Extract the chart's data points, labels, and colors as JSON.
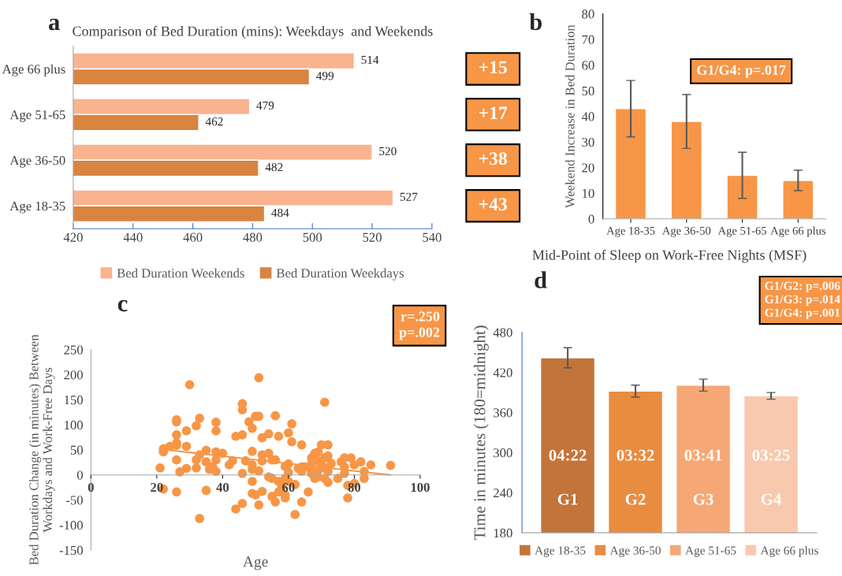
{
  "chart_data": [
    {
      "type": "bar",
      "orientation": "horizontal",
      "title": "Comparison of Bed Duration (mins): Weekdays  and Weekends",
      "categories": [
        "Age 66 plus",
        "Age 51-65",
        "Age 36-50",
        "Age 18-35"
      ],
      "series": [
        {
          "name": "Bed Duration Weekends",
          "color": "#f9b38f",
          "values": [
            514,
            479,
            520,
            527
          ]
        },
        {
          "name": "Bed Duration Weekdays",
          "color": "#d9843f",
          "values": [
            499,
            462,
            482,
            484
          ]
        }
      ],
      "xlim": [
        420,
        540
      ],
      "xticks": [
        420,
        440,
        460,
        480,
        500,
        520,
        540
      ],
      "data_labels": true,
      "legend": "bottom",
      "grid": false,
      "annotations": [
        "a",
        "+15",
        "+17",
        "+38",
        "+43"
      ]
    },
    {
      "type": "bar",
      "categories": [
        "Age 18-35",
        "Age 36-50",
        "Age 51-65",
        "Age 66 plus"
      ],
      "values": [
        43,
        38,
        17,
        15
      ],
      "color": "#f79646",
      "errors": [
        11,
        10.5,
        9,
        4
      ],
      "ylabel": "Weekend Increase in Bed Duration",
      "ylim": [
        0,
        80
      ],
      "yticks": [
        0,
        10,
        20,
        30,
        40,
        50,
        60,
        70,
        80
      ],
      "grid": false,
      "legend": false,
      "annotations": [
        "b",
        "G1/G4: p=.017"
      ]
    },
    {
      "type": "scatter",
      "xlabel": "Age",
      "ylabel": "Bed Duration Change (in minutes) Between\nWorkdays and Work-Free Days",
      "series": [
        {
          "type": "scatter",
          "marker": "circle",
          "color": "#f79646",
          "x": [
            21,
            22,
            22,
            22,
            24,
            26,
            26,
            26,
            26,
            26,
            26,
            26,
            27,
            29,
            29,
            29,
            30,
            32,
            32,
            32,
            33,
            33,
            33,
            35,
            35,
            35,
            36,
            37,
            38,
            38,
            38,
            38,
            38,
            40,
            42,
            43,
            44,
            44,
            46,
            46,
            46,
            46,
            46,
            47,
            48,
            49,
            49,
            49,
            49,
            49,
            49,
            50,
            50,
            51,
            51,
            51,
            51,
            52,
            52,
            52,
            52,
            54,
            54,
            54,
            55,
            55,
            55,
            56,
            56,
            56,
            57,
            57,
            57,
            58,
            59,
            59,
            59,
            59,
            60,
            60,
            60,
            60,
            61,
            61,
            62,
            62,
            63,
            64,
            64,
            64,
            64,
            65,
            66,
            67,
            67,
            67,
            67,
            68,
            68,
            69,
            69,
            69,
            69,
            70,
            70,
            71,
            71,
            71,
            71,
            72,
            72,
            72,
            72,
            73,
            75,
            76,
            77,
            77,
            77,
            78,
            78,
            79,
            80,
            80,
            82,
            83,
            83,
            85,
            91
          ],
          "values": [
            14,
            52,
            46,
            -28,
            57,
            110,
            106,
            80,
            64,
            59,
            30,
            -34,
            6,
            88,
            57,
            13,
            180,
            98,
            30,
            14,
            113,
            40,
            -87,
            49,
            26,
            -31,
            11,
            16,
            105,
            88,
            46,
            30,
            7,
            43,
            20,
            28,
            77,
            -68,
            142,
            130,
            80,
            3,
            -57,
            28,
            106,
            93,
            47,
            20,
            11,
            -13,
            -37,
            117,
            -40,
            194,
            117,
            8,
            -60,
            74,
            40,
            28,
            -33,
            82,
            43,
            -4,
            30,
            -7,
            -43,
            118,
            30,
            -54,
            77,
            -13,
            -34,
            -23,
            17,
            -7,
            -40,
            -46,
            84,
            22,
            5,
            -13,
            102,
            66,
            -19,
            -79,
            13,
            60,
            16,
            7,
            -54,
            16,
            -34,
            34,
            22,
            7,
            3,
            43,
            -7,
            46,
            28,
            9,
            -4,
            60,
            22,
            145,
            34,
            14,
            -7,
            60,
            38,
            7,
            -15,
            23,
            -7,
            26,
            34,
            16,
            3,
            -21,
            -46,
            34,
            20,
            -17,
            26,
            7,
            -7,
            20,
            19
          ]
        },
        {
          "type": "line",
          "marker": "none",
          "color": "#f79646",
          "x": [
            23,
            91
          ],
          "values": [
            50,
            0
          ]
        }
      ],
      "xlim": [
        0,
        100
      ],
      "xticks": [
        0,
        20,
        40,
        60,
        80,
        100
      ],
      "ylim": [
        -150,
        250
      ],
      "yticks": [
        -150,
        -100,
        -50,
        0,
        50,
        100,
        150,
        200,
        250
      ],
      "grid": false,
      "legend": false,
      "annotations": [
        "c",
        "r=.250\np=.002"
      ]
    },
    {
      "type": "bar",
      "title": "Mid-Point of Sleep on Work-Free Nights (MSF)",
      "categories": [
        null
      ],
      "series": [
        {
          "name": "Age 18-35",
          "color": "#c3743a",
          "values": [
            442
          ],
          "errors": [
            15
          ]
        },
        {
          "name": "Age 36-50",
          "color": "#e88c40",
          "values": [
            392
          ],
          "errors": [
            9
          ]
        },
        {
          "name": "Age 51-65",
          "color": "#f5a875",
          "values": [
            401
          ],
          "errors": [
            9
          ]
        },
        {
          "name": "Age 66 plus",
          "color": "#f8c9ae",
          "values": [
            385
          ],
          "errors": [
            5
          ]
        }
      ],
      "ylabel": "Time in minutes (180=midnight)",
      "ylim": [
        180,
        480
      ],
      "yticks": [
        180,
        240,
        300,
        360,
        420,
        480
      ],
      "tick_labels": "y",
      "grid": false,
      "legend": "bottom",
      "annotations": [
        "d",
        "G1/G2: p=.006\nG1/G3: p=.014\nG1/G4: p=.001",
        "04:22",
        "03:32",
        "03:41",
        "03:25",
        "G1",
        "G2",
        "G3",
        "G4"
      ]
    }
  ]
}
